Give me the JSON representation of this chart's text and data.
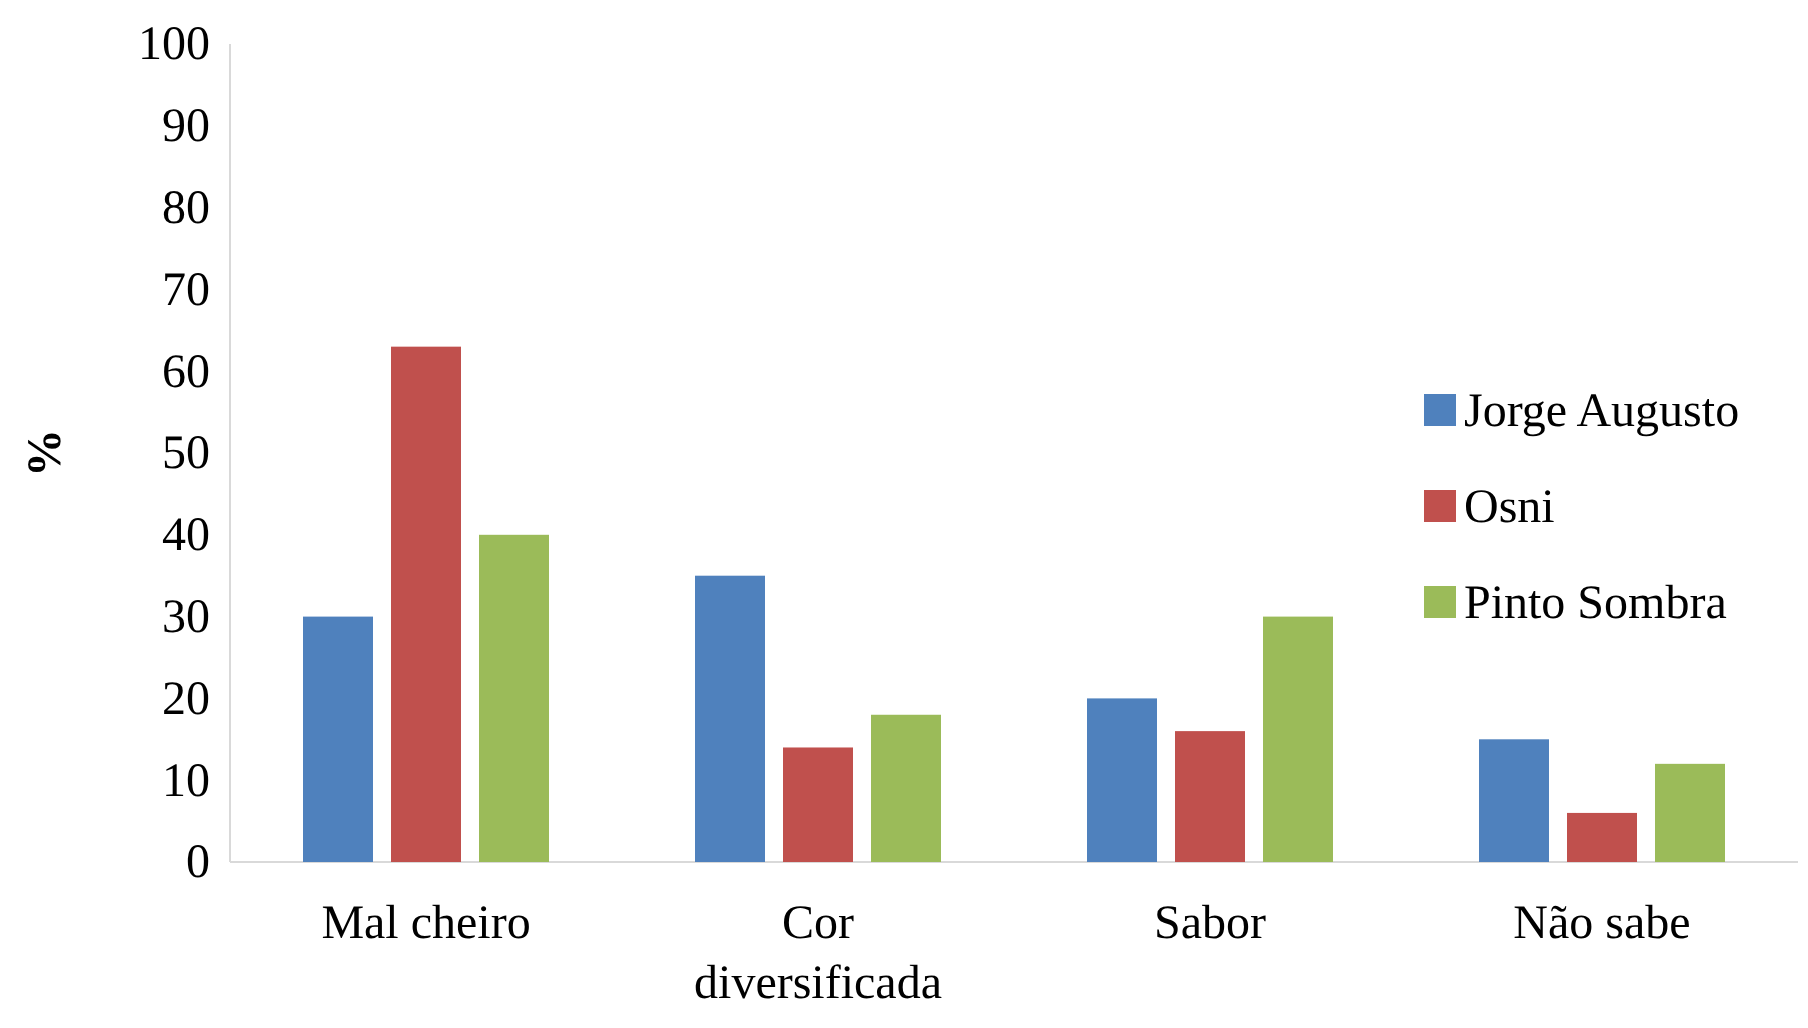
{
  "chart_data": {
    "type": "bar",
    "ylabel": "%",
    "categories": [
      "Mal cheiro",
      "Cor diversificada",
      "Sabor",
      "Não sabe"
    ],
    "series": [
      {
        "name": "Jorge Augusto",
        "color": "#4f81bd",
        "values": [
          30,
          35,
          20,
          15
        ]
      },
      {
        "name": "Osni",
        "color": "#c0504d",
        "values": [
          63,
          14,
          16,
          6
        ]
      },
      {
        "name": "Pinto Sombra",
        "color": "#9bbb59",
        "values": [
          40,
          18,
          30,
          12
        ]
      }
    ],
    "ylim": [
      0,
      100
    ],
    "yticks": [
      0,
      10,
      20,
      30,
      40,
      50,
      60,
      70,
      80,
      90,
      100
    ],
    "grid": false,
    "legend": "right"
  }
}
